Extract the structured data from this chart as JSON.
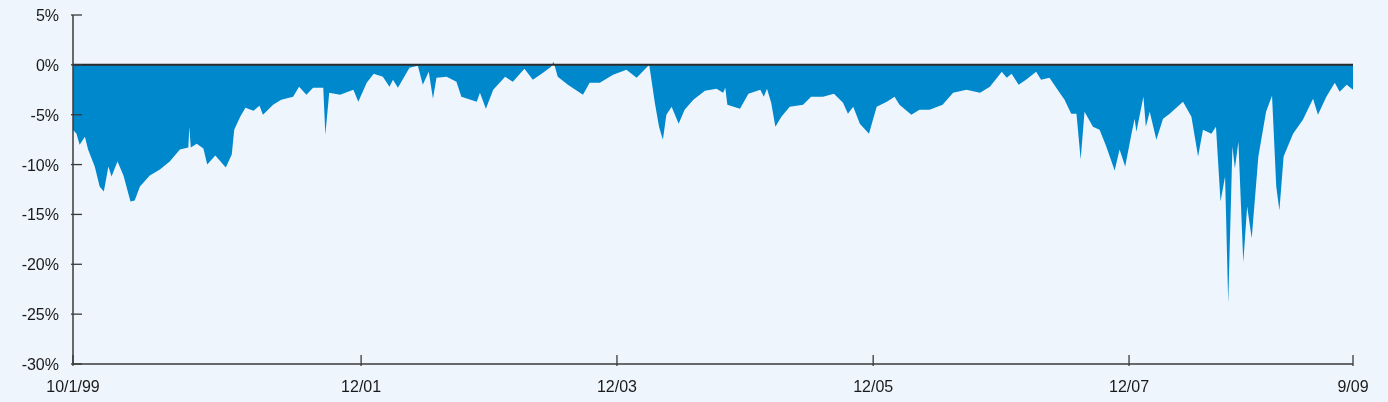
{
  "chart_data": {
    "type": "area",
    "x": [
      "1999-10-01",
      "1999-10-11",
      "1999-10-20",
      "1999-11-04",
      "1999-11-13",
      "1999-12-02",
      "1999-12-16",
      "1999-12-28",
      "2000-01-10",
      "2000-01-19",
      "2000-02-05",
      "2000-02-22",
      "2000-03-13",
      "2000-03-25",
      "2000-04-09",
      "2000-05-07",
      "2000-06-05",
      "2000-07-03",
      "2000-08-01",
      "2000-08-25",
      "2000-08-28",
      "2000-09-01",
      "2000-09-18",
      "2000-10-07",
      "2000-10-18",
      "2000-11-10",
      "2000-12-10",
      "2000-12-27",
      "2001-01-03",
      "2001-01-20",
      "2001-02-04",
      "2001-02-27",
      "2001-03-16",
      "2001-03-26",
      "2001-04-24",
      "2001-05-17",
      "2001-06-20",
      "2001-07-07",
      "2001-07-28",
      "2001-08-16",
      "2001-09-14",
      "2001-09-20",
      "2001-10-01",
      "2001-11-01",
      "2001-12-09",
      "2001-12-23",
      "2002-01-16",
      "2002-02-05",
      "2002-03-03",
      "2002-03-22",
      "2002-04-01",
      "2002-04-15",
      "2002-05-18",
      "2002-06-11",
      "2002-06-25",
      "2002-07-12",
      "2002-07-24",
      "2002-08-03",
      "2002-09-01",
      "2002-09-29",
      "2002-10-13",
      "2002-11-26",
      "2002-12-05",
      "2002-12-22",
      "2003-01-12",
      "2003-02-15",
      "2003-03-09",
      "2003-04-11",
      "2003-05-05",
      "2003-06-03",
      "2003-06-26",
      "2003-07-03",
      "2003-07-15",
      "2003-08-13",
      "2003-09-25",
      "2003-10-14",
      "2003-11-12",
      "2003-12-20",
      "2004-01-27",
      "2004-02-25",
      "2004-03-24",
      "2004-04-01",
      "2004-04-17",
      "2004-04-29",
      "2004-05-10",
      "2004-05-20",
      "2004-06-04",
      "2004-06-24",
      "2004-07-11",
      "2004-08-05",
      "2004-09-07",
      "2004-10-10",
      "2004-10-29",
      "2004-11-04",
      "2004-11-10",
      "2004-12-16",
      "2005-01-09",
      "2005-02-12",
      "2005-02-22",
      "2005-03-03",
      "2005-03-15",
      "2005-03-27",
      "2005-04-13",
      "2005-05-07",
      "2005-06-14",
      "2005-07-07",
      "2005-08-10",
      "2005-09-10",
      "2005-10-06",
      "2005-10-20",
      "2005-11-04",
      "2005-11-23",
      "2005-12-19",
      "2006-01-10",
      "2006-02-08",
      "2006-03-02",
      "2006-03-16",
      "2006-04-19",
      "2006-05-12",
      "2006-06-10",
      "2006-07-17",
      "2006-08-16",
      "2006-09-23",
      "2006-11-01",
      "2006-11-29",
      "2007-01-02",
      "2007-01-16",
      "2007-01-30",
      "2007-02-19",
      "2007-03-12",
      "2007-04-10",
      "2007-04-24",
      "2007-05-18",
      "2007-06-16",
      "2007-06-30",
      "2007-07-19",
      "2007-08-03",
      "2007-08-15",
      "2007-08-26",
      "2007-09-19",
      "2007-10-08",
      "2007-10-27",
      "2007-11-20",
      "2007-12-04",
      "2007-12-20",
      "2008-01-07",
      "2008-01-16",
      "2008-01-21",
      "2008-02-10",
      "2008-02-17",
      "2008-02-28",
      "2008-03-18",
      "2008-04-06",
      "2008-04-25",
      "2008-06-02",
      "2008-06-26",
      "2008-07-15",
      "2008-07-29",
      "2008-08-22",
      "2008-09-04",
      "2008-09-17",
      "2008-09-30",
      "2008-10-09",
      "2008-10-21",
      "2008-10-28",
      "2008-11-07",
      "2008-11-21",
      "2008-12-02",
      "2008-12-15",
      "2009-01-03",
      "2009-01-25",
      "2009-02-11",
      "2009-02-23",
      "2009-03-04",
      "2009-03-16",
      "2009-04-12",
      "2009-05-10",
      "2009-06-08",
      "2009-06-22",
      "2009-07-16",
      "2009-08-09",
      "2009-08-23",
      "2009-09-12",
      "2009-09-30"
    ],
    "series": [
      {
        "color": "#0088cc",
        "values": [
          -6.5,
          -6.9,
          -8.0,
          -7.2,
          -8.5,
          -10.2,
          -12.2,
          -12.7,
          -10.2,
          -11.2,
          -9.7,
          -11.1,
          -13.7,
          -13.6,
          -12.2,
          -11.1,
          -10.5,
          -9.7,
          -8.5,
          -8.3,
          -6.2,
          -8.3,
          -7.9,
          -8.4,
          -10.0,
          -9.1,
          -10.3,
          -9.0,
          -6.5,
          -5.2,
          -4.3,
          -4.6,
          -4.1,
          -5.0,
          -4.0,
          -3.5,
          -3.2,
          -2.2,
          -3.0,
          -2.3,
          -2.3,
          -7.0,
          -2.8,
          -3.0,
          -2.5,
          -3.7,
          -1.8,
          -0.9,
          -1.2,
          -2.2,
          -1.5,
          -2.3,
          -0.3,
          -0.1,
          -2.0,
          -0.7,
          -3.4,
          -1.3,
          -1.2,
          -1.7,
          -3.2,
          -3.7,
          -2.8,
          -4.4,
          -2.5,
          -1.2,
          -1.7,
          -0.4,
          -1.5,
          -0.8,
          -0.2,
          0.3,
          -1.2,
          -2.0,
          -3.0,
          -1.8,
          -1.8,
          -1.0,
          -0.5,
          -1.3,
          -0.3,
          0,
          -3.8,
          -6.2,
          -7.5,
          -5.0,
          -4.2,
          -5.9,
          -4.5,
          -3.5,
          -2.6,
          -2.4,
          -2.8,
          -2.3,
          -4.0,
          -4.4,
          -2.9,
          -2.5,
          -3.2,
          -2.4,
          -3.8,
          -6.2,
          -5.2,
          -4.2,
          -4.0,
          -3.2,
          -3.2,
          -2.9,
          -3.8,
          -4.9,
          -4.2,
          -5.9,
          -6.9,
          -4.2,
          -3.7,
          -3.2,
          -4.0,
          -5.0,
          -4.5,
          -4.5,
          -4.0,
          -2.8,
          -2.5,
          -2.8,
          -2.2,
          -0.7,
          -1.3,
          -0.9,
          -2.0,
          -1.5,
          -0.7,
          -1.5,
          -1.3,
          -2.8,
          -3.5,
          -4.9,
          -4.9,
          -9.5,
          -4.7,
          -6.2,
          -6.5,
          -8.2,
          -10.6,
          -8.5,
          -10.2,
          -6.9,
          -5.4,
          -6.7,
          -3.2,
          -6.2,
          -4.7,
          -7.5,
          -5.4,
          -4.9,
          -3.7,
          -5.2,
          -9.2,
          -6.5,
          -6.9,
          -6.2,
          -13.7,
          -11.2,
          -23.9,
          -8.2,
          -10.4,
          -7.7,
          -19.8,
          -14.2,
          -17.4,
          -9.2,
          -4.7,
          -3.1,
          -12.2,
          -14.6,
          -9.2,
          -6.9,
          -5.5,
          -3.4,
          -5.0,
          -3.2,
          -1.8,
          -2.7,
          -2.0,
          -2.5
        ]
      }
    ],
    "xlim": [
      "1999-10-01",
      "2009-09-30"
    ],
    "xticks": [
      {
        "value": "1999-10-01",
        "label": "10/1/99"
      },
      {
        "value": "2001-12-31",
        "label": "12/01"
      },
      {
        "value": "2003-12-31",
        "label": "12/03"
      },
      {
        "value": "2005-12-31",
        "label": "12/05"
      },
      {
        "value": "2007-12-31",
        "label": "12/07"
      },
      {
        "value": "2009-09-30",
        "label": "9/09"
      }
    ],
    "ylim": [
      -30,
      5
    ],
    "yticks": [
      {
        "value": 5,
        "label": "5%"
      },
      {
        "value": 0,
        "label": "0%"
      },
      {
        "value": -5,
        "label": "-5%"
      },
      {
        "value": -10,
        "label": "-10%"
      },
      {
        "value": -15,
        "label": "-15%"
      },
      {
        "value": -20,
        "label": "-20%"
      },
      {
        "value": -25,
        "label": "-25%"
      },
      {
        "value": -30,
        "label": "-30%"
      }
    ],
    "ref_lines": [
      {
        "axis": "y",
        "value": 0,
        "color": "#2b2b2b"
      }
    ]
  }
}
